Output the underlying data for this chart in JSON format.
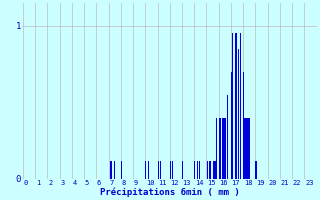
{
  "bar_color": "#0000dd",
  "bg_color": "#ccffff",
  "grid_color": "#bbbbbb",
  "xlabel": "Précipitations 6min ( mm )",
  "xlabel_color": "#0000cc",
  "ylim": [
    0,
    1.15
  ],
  "hours": [
    "0",
    "1",
    "2",
    "3",
    "4",
    "5",
    "6",
    "7",
    "8",
    "9",
    "10",
    "11",
    "12",
    "13",
    "14",
    "15",
    "16",
    "17",
    "18",
    "19",
    "20",
    "21",
    "22",
    "23"
  ],
  "slots_per_hour": 10,
  "precipitation_6min": [
    0,
    0,
    0,
    0,
    0,
    0,
    0,
    0,
    0,
    0,
    0,
    0,
    0,
    0,
    0,
    0,
    0,
    0,
    0,
    0,
    0,
    0,
    0,
    0,
    0,
    0,
    0,
    0,
    0,
    0,
    0,
    0,
    0,
    0,
    0,
    0,
    0,
    0,
    0,
    0,
    0,
    0,
    0,
    0,
    0,
    0,
    0,
    0,
    0,
    0,
    0,
    0,
    0,
    0,
    0,
    0,
    0,
    0,
    0,
    0,
    0,
    0,
    0,
    0,
    0,
    0,
    0,
    0,
    0,
    0,
    0,
    0.12,
    0.12,
    0,
    0.12,
    0,
    0,
    0,
    0,
    0,
    0.12,
    0,
    0,
    0,
    0,
    0,
    0,
    0,
    0,
    0,
    0,
    0,
    0,
    0,
    0,
    0,
    0,
    0,
    0,
    0,
    0.12,
    0,
    0.12,
    0,
    0,
    0,
    0,
    0,
    0,
    0,
    0.12,
    0,
    0.12,
    0,
    0,
    0,
    0,
    0,
    0,
    0,
    0.12,
    0,
    0.12,
    0,
    0,
    0,
    0,
    0,
    0,
    0,
    0.12,
    0,
    0,
    0,
    0,
    0,
    0,
    0,
    0,
    0,
    0.12,
    0,
    0.12,
    0,
    0.12,
    0,
    0,
    0,
    0,
    0,
    0.12,
    0,
    0.12,
    0.12,
    0,
    0.12,
    0.12,
    0.12,
    0.4,
    0,
    0.4,
    0.4,
    0,
    0.4,
    0.4,
    0.4,
    0,
    0.55,
    0,
    0,
    0.7,
    0.95,
    0,
    0.95,
    0.95,
    0,
    0.85,
    0.95,
    0,
    0,
    0.7,
    0.4,
    0.4,
    0.4,
    0.4,
    0.4,
    0,
    0,
    0,
    0,
    0.12,
    0,
    0,
    0,
    0,
    0,
    0,
    0,
    0,
    0,
    0,
    0,
    0,
    0,
    0,
    0,
    0,
    0,
    0,
    0,
    0,
    0,
    0,
    0,
    0,
    0,
    0,
    0,
    0,
    0,
    0,
    0,
    0,
    0,
    0,
    0,
    0,
    0,
    0,
    0,
    0,
    0,
    0,
    0,
    0,
    0,
    0,
    0,
    0,
    0
  ]
}
